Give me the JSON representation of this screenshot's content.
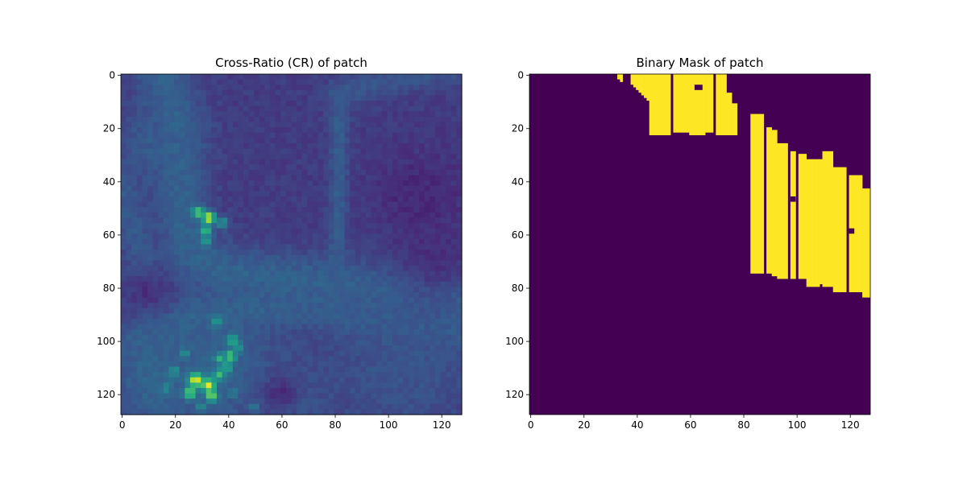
{
  "chart_data": [
    {
      "type": "heatmap",
      "title": "Cross-Ratio (CR) of patch",
      "xlabel": "",
      "ylabel": "",
      "xlim": [
        -0.5,
        127.5
      ],
      "ylim": [
        127.5,
        -0.5
      ],
      "grid": false,
      "colormap": "viridis",
      "x_ticks": [
        0,
        20,
        40,
        60,
        80,
        100,
        120
      ],
      "x_tick_labels": [
        "0",
        "20",
        "40",
        "60",
        "80",
        "100",
        "120"
      ],
      "y_ticks": [
        0,
        20,
        40,
        60,
        80,
        100,
        120
      ],
      "y_tick_labels": [
        "0",
        "20",
        "40",
        "60",
        "80",
        "100",
        "120"
      ],
      "value_range": [
        0,
        1
      ],
      "background_value": 0.18,
      "features": [
        {
          "kind": "band",
          "points": [
            [
              15,
              -2
            ],
            [
              22,
              20
            ],
            [
              22,
              40
            ],
            [
              23,
              55
            ],
            [
              27,
              68
            ],
            [
              40,
              74
            ],
            [
              70,
              78
            ],
            [
              100,
              82
            ],
            [
              130,
              83
            ]
          ],
          "width": 7,
          "value": 0.32
        },
        {
          "kind": "band",
          "points": [
            [
              82,
              8
            ],
            [
              82,
              40
            ],
            [
              81,
              78
            ]
          ],
          "width": 2.5,
          "value": 0.3
        },
        {
          "kind": "band",
          "points": [
            [
              5,
              100
            ],
            [
              30,
              90
            ],
            [
              60,
              88
            ],
            [
              100,
              92
            ],
            [
              130,
              96
            ]
          ],
          "width": 5,
          "value": 0.3
        },
        {
          "kind": "band",
          "points": [
            [
              82,
              8
            ],
            [
              100,
              2
            ],
            [
              130,
              -2
            ]
          ],
          "width": 4,
          "value": 0.27
        },
        {
          "kind": "band",
          "points": [
            [
              0,
              40
            ],
            [
              8,
              70
            ],
            [
              16,
              128
            ]
          ],
          "width": 5,
          "value": 0.28
        },
        {
          "kind": "blob",
          "cx": 12,
          "cy": 25,
          "r": 10,
          "value": 0.3
        },
        {
          "kind": "blob",
          "cx": 105,
          "cy": 110,
          "r": 22,
          "value": 0.28
        },
        {
          "kind": "blob",
          "cx": 35,
          "cy": 110,
          "r": 18,
          "value": 0.34
        },
        {
          "kind": "blob",
          "cx": 10,
          "cy": 115,
          "r": 10,
          "value": 0.33
        },
        {
          "kind": "blob",
          "cx": 65,
          "cy": 122,
          "r": 8,
          "value": 0.28
        },
        {
          "kind": "dark",
          "cx": 112,
          "cy": 45,
          "r": 12,
          "value": 0.1
        },
        {
          "kind": "dark",
          "cx": 118,
          "cy": 70,
          "r": 10,
          "value": 0.12
        },
        {
          "kind": "dark",
          "cx": 10,
          "cy": 82,
          "r": 6,
          "value": 0.1
        },
        {
          "kind": "dark",
          "cx": 60,
          "cy": 120,
          "r": 5,
          "value": 0.1
        },
        {
          "kind": "spot",
          "cx": 33,
          "cy": 54,
          "r": 1.6,
          "value": 0.95
        },
        {
          "kind": "spot",
          "cx": 29,
          "cy": 52,
          "r": 1.5,
          "value": 0.75
        },
        {
          "kind": "spot",
          "cx": 32,
          "cy": 59,
          "r": 1.5,
          "value": 0.7
        },
        {
          "kind": "spot",
          "cx": 32,
          "cy": 63,
          "r": 1.3,
          "value": 0.6
        },
        {
          "kind": "spot",
          "cx": 38,
          "cy": 56,
          "r": 1.5,
          "value": 0.55
        },
        {
          "kind": "spot",
          "cx": 28,
          "cy": 115,
          "r": 1.8,
          "value": 1.0
        },
        {
          "kind": "spot",
          "cx": 33,
          "cy": 117,
          "r": 1.8,
          "value": 0.95
        },
        {
          "kind": "spot",
          "cx": 26,
          "cy": 120,
          "r": 1.5,
          "value": 0.85
        },
        {
          "kind": "spot",
          "cx": 34,
          "cy": 121,
          "r": 1.5,
          "value": 0.8
        },
        {
          "kind": "spot",
          "cx": 37,
          "cy": 113,
          "r": 1.5,
          "value": 0.7
        },
        {
          "kind": "spot",
          "cx": 41,
          "cy": 106,
          "r": 1.5,
          "value": 0.75
        },
        {
          "kind": "spot",
          "cx": 37,
          "cy": 107,
          "r": 1.3,
          "value": 0.65
        },
        {
          "kind": "spot",
          "cx": 42,
          "cy": 100,
          "r": 1.5,
          "value": 0.65
        },
        {
          "kind": "spot",
          "cx": 40,
          "cy": 110,
          "r": 1.3,
          "value": 0.65
        },
        {
          "kind": "spot",
          "cx": 36,
          "cy": 93,
          "r": 1.3,
          "value": 0.55
        },
        {
          "kind": "spot",
          "cx": 20,
          "cy": 112,
          "r": 1.3,
          "value": 0.55
        },
        {
          "kind": "spot",
          "cx": 17,
          "cy": 118,
          "r": 1.3,
          "value": 0.5
        },
        {
          "kind": "spot",
          "cx": 24,
          "cy": 105,
          "r": 1.3,
          "value": 0.5
        },
        {
          "kind": "spot",
          "cx": 44,
          "cy": 103,
          "r": 1.3,
          "value": 0.55
        },
        {
          "kind": "spot",
          "cx": 30,
          "cy": 125,
          "r": 1.2,
          "value": 0.5
        },
        {
          "kind": "spot",
          "cx": 42,
          "cy": 120,
          "r": 1.2,
          "value": 0.45
        },
        {
          "kind": "spot",
          "cx": 50,
          "cy": 125,
          "r": 1.2,
          "value": 0.45
        }
      ]
    },
    {
      "type": "heatmap",
      "title": "Binary Mask of patch",
      "xlabel": "",
      "ylabel": "",
      "xlim": [
        -0.5,
        127.5
      ],
      "ylim": [
        127.5,
        -0.5
      ],
      "grid": false,
      "colormap": "viridis",
      "values": [
        0,
        1
      ],
      "colors": {
        "0": "#440154",
        "1": "#fde725"
      },
      "x_ticks": [
        0,
        20,
        40,
        60,
        80,
        100,
        120
      ],
      "x_tick_labels": [
        "0",
        "20",
        "40",
        "60",
        "80",
        "100",
        "120"
      ],
      "y_ticks": [
        0,
        20,
        40,
        60,
        80,
        100,
        120
      ],
      "y_tick_labels": [
        "0",
        "20",
        "40",
        "60",
        "80",
        "100",
        "120"
      ],
      "mask_columns": [
        {
          "x0": 33,
          "x1": 34,
          "y0": 0,
          "y1": 2
        },
        {
          "x0": 34,
          "x1": 35,
          "y0": 0,
          "y1": 3
        },
        {
          "x0": 38,
          "x1": 39,
          "y0": 0,
          "y1": 4
        },
        {
          "x0": 39,
          "x1": 40,
          "y0": 0,
          "y1": 5
        },
        {
          "x0": 40,
          "x1": 41,
          "y0": 0,
          "y1": 6
        },
        {
          "x0": 41,
          "x1": 42,
          "y0": 0,
          "y1": 7
        },
        {
          "x0": 42,
          "x1": 43,
          "y0": 0,
          "y1": 8
        },
        {
          "x0": 43,
          "x1": 44,
          "y0": 0,
          "y1": 9
        },
        {
          "x0": 44,
          "x1": 45,
          "y0": 0,
          "y1": 10
        },
        {
          "x0": 45,
          "x1": 53,
          "y0": 0,
          "y1": 23
        },
        {
          "x0": 54,
          "x1": 60,
          "y0": 0,
          "y1": 22
        },
        {
          "x0": 60,
          "x1": 66,
          "y0": 0,
          "y1": 23
        },
        {
          "x0": 66,
          "x1": 69,
          "y0": 0,
          "y1": 22
        },
        {
          "x0": 70,
          "x1": 74,
          "y0": 0,
          "y1": 23
        },
        {
          "x0": 74,
          "x1": 76,
          "y0": 7,
          "y1": 23
        },
        {
          "x0": 76,
          "x1": 78,
          "y0": 11,
          "y1": 23
        },
        {
          "x0": 83,
          "x1": 88,
          "y0": 15,
          "y1": 75
        },
        {
          "x0": 89,
          "x1": 91,
          "y0": 20,
          "y1": 75
        },
        {
          "x0": 91,
          "x1": 93,
          "y0": 21,
          "y1": 76
        },
        {
          "x0": 93,
          "x1": 97,
          "y0": 26,
          "y1": 77
        },
        {
          "x0": 98,
          "x1": 100,
          "y0": 29,
          "y1": 77
        },
        {
          "x0": 101,
          "x1": 104,
          "y0": 30,
          "y1": 77
        },
        {
          "x0": 104,
          "x1": 107,
          "y0": 32,
          "y1": 80
        },
        {
          "x0": 107,
          "x1": 109,
          "y0": 32,
          "y1": 80
        },
        {
          "x0": 109,
          "x1": 110,
          "y0": 32,
          "y1": 79
        },
        {
          "x0": 110,
          "x1": 114,
          "y0": 29,
          "y1": 80
        },
        {
          "x0": 114,
          "x1": 119,
          "y0": 35,
          "y1": 82
        },
        {
          "x0": 120,
          "x1": 125,
          "y0": 38,
          "y1": 82
        },
        {
          "x0": 125,
          "x1": 128,
          "y0": 43,
          "y1": 84
        }
      ],
      "mask_holes": [
        {
          "x0": 62,
          "x1": 65,
          "y0": 4,
          "y1": 6
        },
        {
          "x0": 98,
          "x1": 100,
          "y0": 46,
          "y1": 48
        },
        {
          "x0": 120,
          "x1": 122,
          "y0": 58,
          "y1": 60
        }
      ]
    }
  ]
}
